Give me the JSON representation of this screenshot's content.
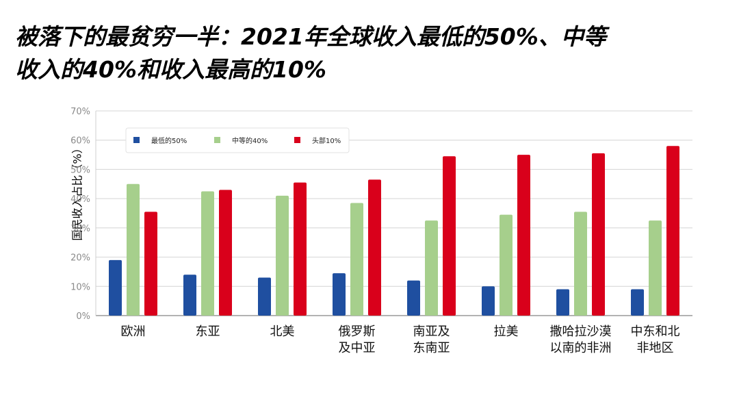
{
  "title_lines": [
    "被落下的最贫穷一半：2021年全球收入最低的50%、中等",
    "收入的40%和收入最高的10%"
  ],
  "chart_data": {
    "type": "bar",
    "title": "被落下的最贫穷一半：2021年全球收入最低的50%、中等收入的40%和收入最高的10%",
    "xlabel": "",
    "ylabel": "国民收入占比（%）",
    "ylim": [
      0,
      70
    ],
    "yticks": [
      0,
      10,
      20,
      30,
      40,
      50,
      60,
      70
    ],
    "ytick_labels": [
      "0%",
      "10%",
      "20%",
      "30%",
      "40%",
      "50%",
      "60%",
      "70%"
    ],
    "grid": true,
    "legend_position": "top-left",
    "categories": [
      [
        "欧洲"
      ],
      [
        "东亚"
      ],
      [
        "北美"
      ],
      [
        "俄罗斯",
        "及中亚"
      ],
      [
        "南亚及",
        "东南亚"
      ],
      [
        "拉美"
      ],
      [
        "撒哈拉沙漠",
        "以南的非洲"
      ],
      [
        "中东和北",
        "非地区"
      ]
    ],
    "series": [
      {
        "name": "最低的50%",
        "color": "#1f4fa0",
        "values": [
          19,
          14,
          13,
          14.5,
          12,
          10,
          9,
          9
        ]
      },
      {
        "name": "中等的40%",
        "color": "#a6cf8c",
        "values": [
          45,
          42.5,
          41,
          38.5,
          32.5,
          34.5,
          35.5,
          32.5
        ]
      },
      {
        "name": "头部10%",
        "color": "#d9001b",
        "values": [
          35.5,
          43,
          45.5,
          46.5,
          54.5,
          55,
          55.5,
          58
        ]
      }
    ]
  }
}
